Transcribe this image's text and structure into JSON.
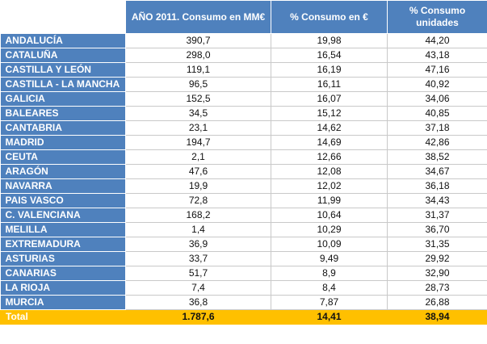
{
  "table": {
    "headers": [
      "",
      "AÑO 2011. Consumo en MM€",
      "% Consumo en €",
      "% Consumo unidades"
    ],
    "rows": [
      [
        "ANDALUCÍA",
        "390,7",
        "19,98",
        "44,20"
      ],
      [
        "CATALUÑA",
        "298,0",
        "16,54",
        "43,18"
      ],
      [
        "CASTILLA Y LEÓN",
        "119,1",
        "16,19",
        "47,16"
      ],
      [
        "CASTILLA - LA MANCHA",
        "96,5",
        "16,11",
        "40,92"
      ],
      [
        "GALICIA",
        "152,5",
        "16,07",
        "34,06"
      ],
      [
        "BALEARES",
        "34,5",
        "15,12",
        "40,85"
      ],
      [
        "CANTABRIA",
        "23,1",
        "14,62",
        "37,18"
      ],
      [
        "MADRID",
        "194,7",
        "14,69",
        "42,86"
      ],
      [
        "CEUTA",
        "2,1",
        "12,66",
        "38,52"
      ],
      [
        "ARAGÓN",
        "47,6",
        "12,08",
        "34,67"
      ],
      [
        "NAVARRA",
        "19,9",
        "12,02",
        "36,18"
      ],
      [
        "PAIS VASCO",
        "72,8",
        "11,99",
        "34,43"
      ],
      [
        "C. VALENCIANA",
        "168,2",
        "10,64",
        "31,37"
      ],
      [
        "MELILLA",
        "1,4",
        "10,29",
        "36,70"
      ],
      [
        "EXTREMADURA",
        "36,9",
        "10,09",
        "31,35"
      ],
      [
        "ASTURIAS",
        "33,7",
        "9,49",
        "29,92"
      ],
      [
        "CANARIAS",
        "51,7",
        "8,9",
        "32,90"
      ],
      [
        "LA RIOJA",
        "7,4",
        "8,4",
        "28,73"
      ],
      [
        "MURCIA",
        "36,8",
        "7,87",
        "26,88"
      ]
    ],
    "total": [
      "Total",
      "1.787,6",
      "14,41",
      "38,94"
    ]
  },
  "colors": {
    "header_blue": "#4f81bd",
    "total_gold": "#ffc000",
    "cell_border": "#c9c9c9"
  }
}
